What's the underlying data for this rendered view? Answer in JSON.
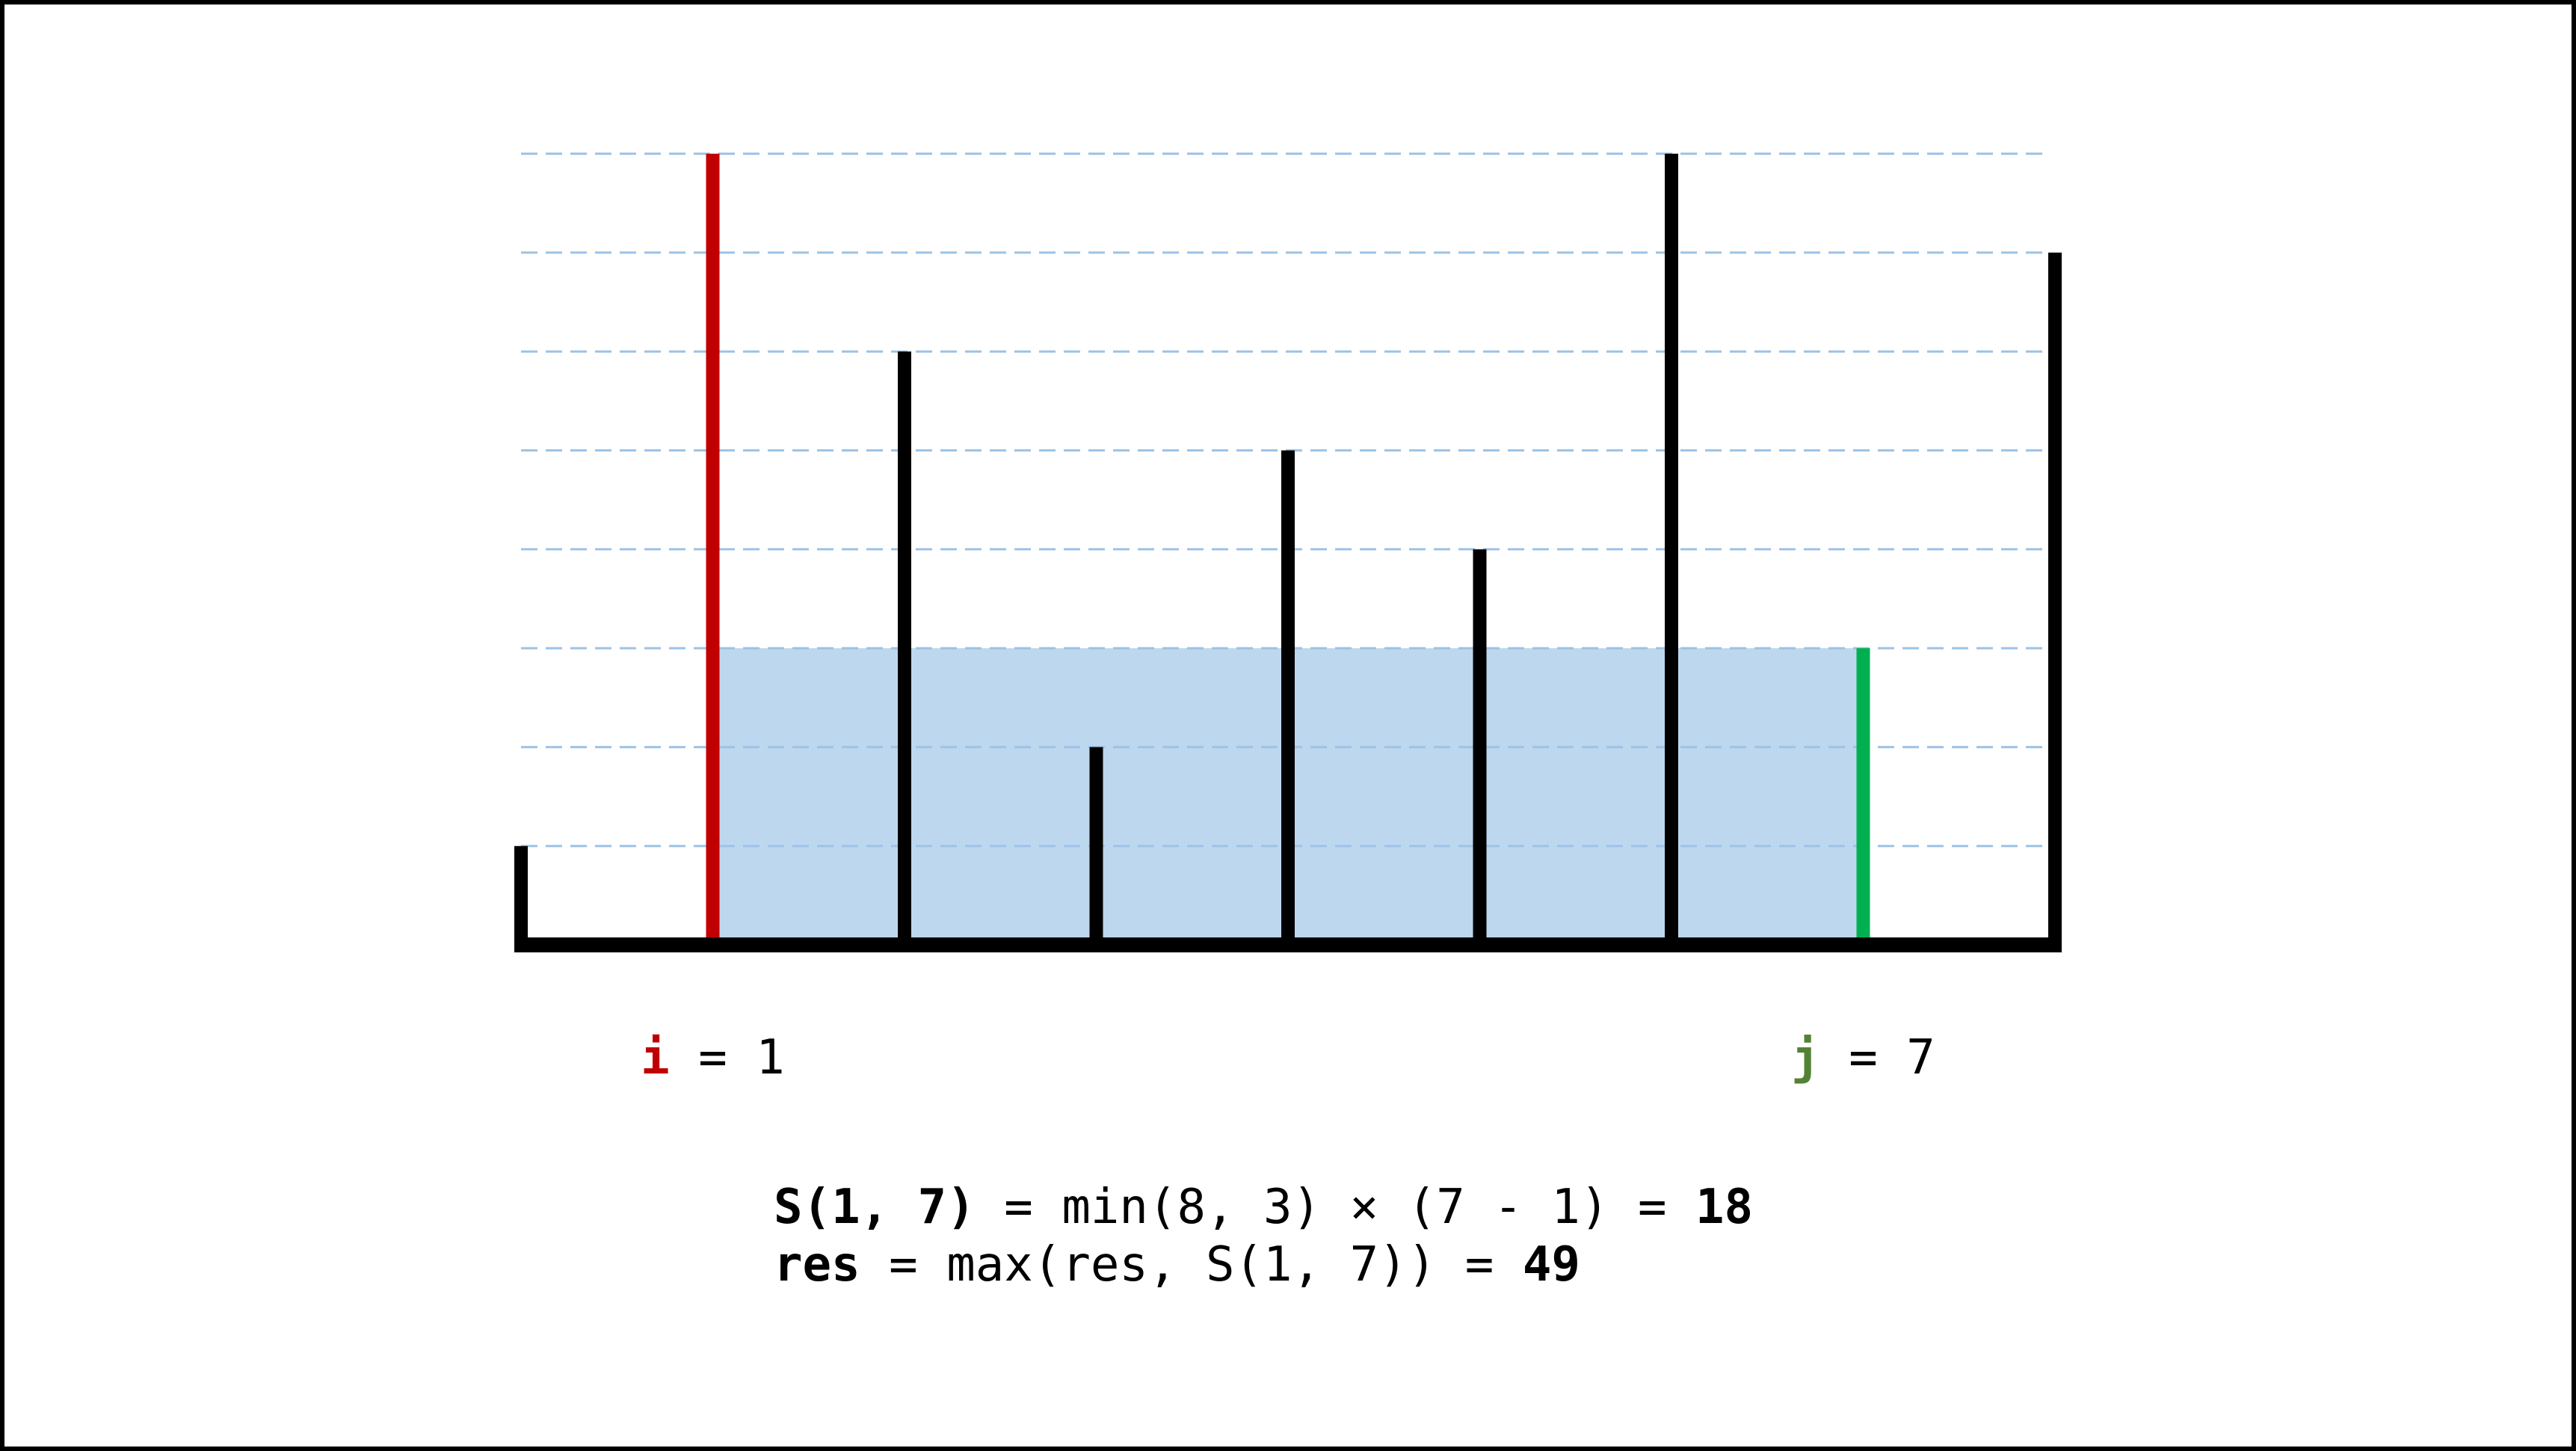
{
  "heights": [
    1,
    8,
    6,
    2,
    5,
    4,
    8,
    3,
    7
  ],
  "levels": [
    1,
    2,
    3,
    4,
    5,
    6,
    7,
    8
  ],
  "pointers": [
    {
      "name": "i",
      "equals": "=",
      "index": 1,
      "color": "#c00000",
      "label_color": "#c00000"
    },
    {
      "name": "j",
      "equals": "=",
      "index": 7,
      "color": "#00b050",
      "label_color": "#548235"
    }
  ],
  "equations": [
    [
      {
        "text": "S(1, 7)",
        "bold": true
      },
      {
        "text": " = min(8, 3) × (7 - 1) = ",
        "bold": false
      },
      {
        "text": "18",
        "bold": true
      }
    ],
    [
      {
        "text": "res",
        "bold": true
      },
      {
        "text": " = max(res, S(1, 7)) = ",
        "bold": false
      },
      {
        "text": "49",
        "bold": true
      }
    ]
  ]
}
